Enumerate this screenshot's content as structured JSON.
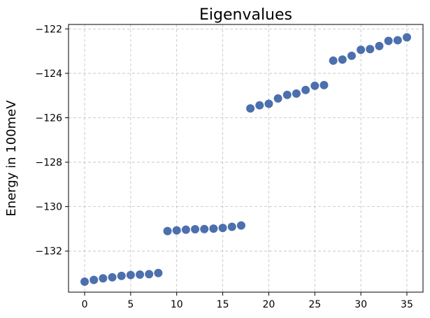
{
  "chart_data": {
    "type": "scatter",
    "title": "Eigenvalues",
    "xlabel": "",
    "ylabel": "Energy in 100meV",
    "xlim": [
      -1.75,
      36.75
    ],
    "ylim": [
      -133.85,
      -121.8
    ],
    "xticks": [
      0,
      5,
      10,
      15,
      20,
      25,
      30,
      35
    ],
    "yticks": [
      -132,
      -130,
      -128,
      -126,
      -124,
      -122
    ],
    "xtick_labels": [
      "0",
      "5",
      "10",
      "15",
      "20",
      "25",
      "30",
      "35"
    ],
    "ytick_labels": [
      "−132",
      "−130",
      "−128",
      "−126",
      "−124",
      "−122"
    ],
    "grid": true,
    "marker_color": "#4c6fae",
    "x": [
      0,
      1,
      2,
      3,
      4,
      5,
      6,
      7,
      8,
      9,
      10,
      11,
      12,
      13,
      14,
      15,
      16,
      17,
      18,
      19,
      20,
      21,
      22,
      23,
      24,
      25,
      26,
      27,
      28,
      29,
      30,
      31,
      32,
      33,
      34,
      35
    ],
    "y": [
      -133.38,
      -133.3,
      -133.23,
      -133.18,
      -133.12,
      -133.08,
      -133.06,
      -133.04,
      -132.99,
      -131.1,
      -131.07,
      -131.04,
      -131.02,
      -131.01,
      -130.99,
      -130.96,
      -130.91,
      -130.85,
      -125.58,
      -125.44,
      -125.37,
      -125.13,
      -124.97,
      -124.91,
      -124.75,
      -124.56,
      -124.53,
      -123.43,
      -123.38,
      -123.21,
      -122.94,
      -122.91,
      -122.77,
      -122.54,
      -122.51,
      -122.38
    ]
  }
}
